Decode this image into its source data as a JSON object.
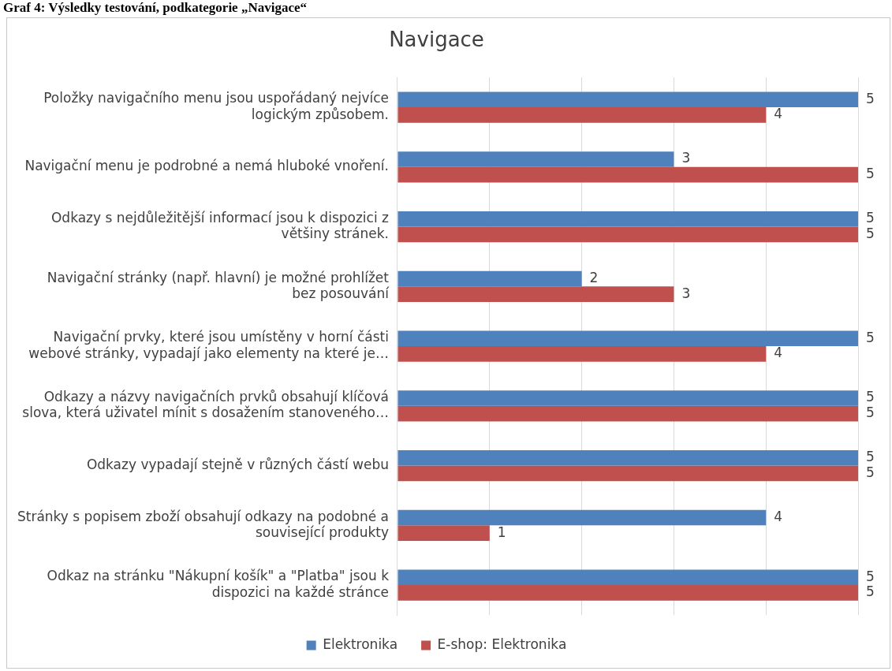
{
  "chart_data": {
    "type": "bar",
    "orientation": "horizontal",
    "title": "Navigace",
    "annotations": [
      "Graf 4: Výsledky testování, podkategorie „Navigace“"
    ],
    "categories": [
      "Položky navigačního menu jsou uspořádaný nejvíce logickým způsobem.",
      "Navigační menu je podrobné a nemá hluboké vnoření.",
      "Odkazy s nejdůležitější informací jsou k dispozici z většiny stránek.",
      "Navigační stránky (např. hlavní) je možné prohlížet bez posouvání",
      "Navigační prvky, které jsou umístěny v horní části webové stránky, vypadají jako elementy na které je…",
      "Odkazy a názvy navigačních prvků obsahují klíčová slova, která uživatel mínit s dosažením stanoveného…",
      "Odkazy vypadají stejně v různých částí webu",
      "Stránky s popisem zboží obsahují odkazy na podobné a související produkty",
      "Odkaz na stránku \"Nákupní košík\" a \"Platba\" jsou k dispozici na každé stránce"
    ],
    "series": [
      {
        "name": "Elektronika",
        "color": "#4f81bd",
        "values": [
          5,
          3,
          5,
          2,
          5,
          5,
          5,
          4,
          5
        ]
      },
      {
        "name": "E-shop: Elektronika",
        "color": "#c0504d",
        "values": [
          4,
          5,
          5,
          3,
          4,
          5,
          5,
          1,
          5
        ]
      }
    ],
    "xlim": [
      0,
      5
    ],
    "xticks": [
      {
        "value": 0,
        "label": null
      },
      {
        "value": 1,
        "label": null
      },
      {
        "value": 2,
        "label": null
      },
      {
        "value": 3,
        "label": null
      },
      {
        "value": 4,
        "label": null
      },
      {
        "value": 5,
        "label": null
      }
    ],
    "tick_labels": "y",
    "grid": "x",
    "legend": "bottom",
    "data_labels": true
  }
}
